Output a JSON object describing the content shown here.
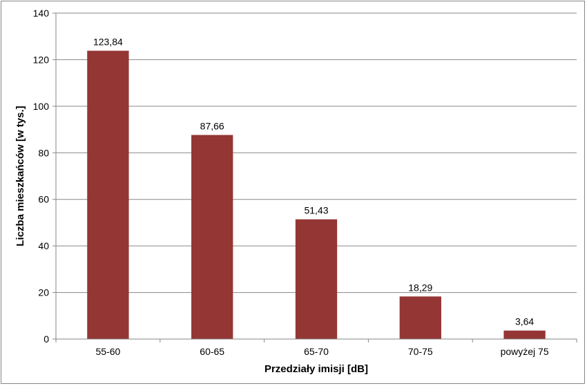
{
  "chart_data": {
    "type": "bar",
    "categories": [
      "55-60",
      "60-65",
      "65-70",
      "70-75",
      "powyżej 75"
    ],
    "values": [
      123.84,
      87.66,
      51.43,
      18.29,
      3.64
    ],
    "data_labels": [
      "123,84",
      "87,66",
      "51,43",
      "18,29",
      "3,64"
    ],
    "title": "",
    "xlabel": "Przedziały imisji [dB]",
    "ylabel": "Liczba mieszkańców [w tys.]",
    "ylim": [
      0,
      140
    ],
    "yticks": [
      0,
      20,
      40,
      60,
      80,
      100,
      120,
      140
    ],
    "ytick_labels": [
      "0",
      "20",
      "40",
      "60",
      "80",
      "100",
      "120",
      "140"
    ],
    "grid": true,
    "legend": "none",
    "bar_color": "#943634"
  }
}
